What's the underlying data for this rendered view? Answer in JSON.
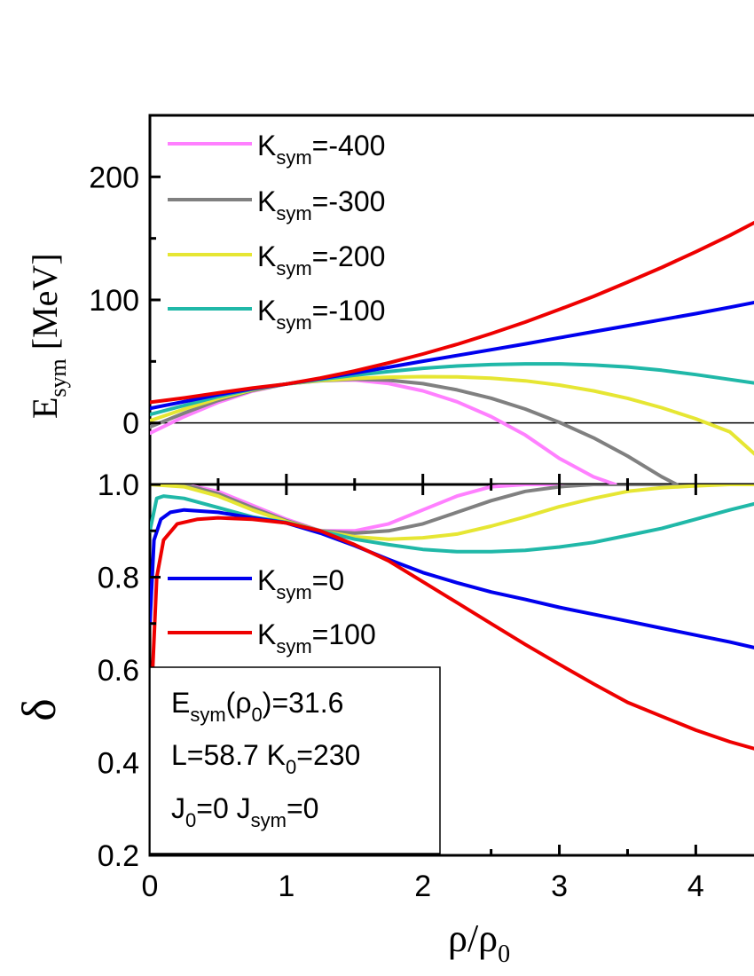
{
  "chart_data": [
    {
      "type": "line",
      "panel": "top",
      "ylabel": {
        "main": "E",
        "sub": "sym",
        "rest": "[MeV]"
      },
      "xlim": [
        0,
        4.55
      ],
      "ylim": [
        -50,
        250
      ],
      "yticks": [
        0,
        100,
        200
      ],
      "ytick_labels": [
        "0",
        "100",
        "200"
      ],
      "hline_y": 0,
      "legend_position": "top-left",
      "series": [
        {
          "name": "Ksym=-400",
          "legend_main": "K",
          "legend_sub": "sym",
          "legend_rest": "=-400",
          "color": "#ff80ff",
          "x": [
            0.0,
            0.25,
            0.5,
            0.75,
            1.0,
            1.25,
            1.5,
            1.75,
            2.0,
            2.25,
            2.5,
            2.75,
            3.0,
            3.25,
            3.41
          ],
          "y": [
            -8.3,
            5.1,
            16.7,
            25.8,
            31.6,
            34.6,
            34.9,
            32.0,
            26.1,
            17.2,
            5.2,
            -9.8,
            -28.8,
            -43.8,
            -50.0
          ]
        },
        {
          "name": "Ksym=-300",
          "legend_main": "K",
          "legend_sub": "sym",
          "legend_rest": "=-300",
          "color": "#808080",
          "x": [
            0.0,
            0.25,
            0.5,
            0.75,
            1.0,
            1.25,
            1.5,
            1.75,
            2.0,
            2.25,
            2.5,
            2.75,
            3.0,
            3.25,
            3.5,
            3.75,
            3.86
          ],
          "y": [
            -3.3,
            8.0,
            18.3,
            26.4,
            31.6,
            34.3,
            35.5,
            34.7,
            31.9,
            26.9,
            20.1,
            11.3,
            0.5,
            -12.1,
            -26.9,
            -43.7,
            -50.0
          ]
        },
        {
          "name": "Ksym=-200",
          "legend_main": "K",
          "legend_sub": "sym",
          "legend_rest": "=-200",
          "color": "#e6e633",
          "x": [
            0.0,
            0.25,
            0.5,
            0.75,
            1.0,
            1.25,
            1.5,
            1.75,
            2.0,
            2.25,
            2.5,
            2.75,
            3.0,
            3.25,
            3.5,
            3.75,
            4.0,
            4.25,
            4.55
          ],
          "y": [
            1.8,
            11.2,
            19.9,
            26.9,
            31.6,
            34.5,
            36.2,
            37.2,
            37.6,
            37.4,
            36.3,
            34.2,
            30.8,
            26.1,
            20.0,
            12.4,
            3.4,
            -7.2,
            -37.0
          ]
        },
        {
          "name": "Ksym=-100",
          "legend_main": "K",
          "legend_sub": "sym",
          "legend_rest": "=-100",
          "color": "#20b8a8",
          "x": [
            0.0,
            0.25,
            0.5,
            0.75,
            1.0,
            1.25,
            1.5,
            1.75,
            2.0,
            2.25,
            2.5,
            2.75,
            3.0,
            3.25,
            3.5,
            3.75,
            4.0,
            4.25,
            4.55
          ],
          "y": [
            6.8,
            14.2,
            21.4,
            27.4,
            31.6,
            35.4,
            38.8,
            41.8,
            44.4,
            46.3,
            47.4,
            48.0,
            48.0,
            47.1,
            45.5,
            42.8,
            39.3,
            35.3,
            30.5
          ]
        },
        {
          "name": "Ksym=0",
          "legend_main": "K",
          "legend_sub": "sym",
          "legend_rest": "=0",
          "color": "#0000ee",
          "x": [
            0.0,
            0.25,
            0.5,
            0.75,
            1.0,
            1.25,
            1.5,
            1.75,
            2.0,
            2.25,
            2.5,
            2.75,
            3.0,
            3.25,
            3.5,
            3.75,
            4.0,
            4.25,
            4.55
          ],
          "y": [
            11.8,
            17.3,
            22.9,
            27.8,
            31.6,
            36.0,
            40.6,
            45.3,
            50.2,
            54.8,
            59.5,
            64.2,
            69.2,
            74.1,
            79.0,
            83.9,
            88.8,
            94.0,
            100.5
          ]
        },
        {
          "name": "Ksym=100",
          "legend_main": "K",
          "legend_sub": "sym",
          "legend_rest": "=100",
          "color": "#ee0000",
          "x": [
            0.0,
            0.25,
            0.5,
            0.75,
            1.0,
            1.25,
            1.5,
            1.75,
            2.0,
            2.25,
            2.5,
            2.75,
            3.0,
            3.25,
            3.5,
            3.75,
            4.0,
            4.25,
            4.55
          ],
          "y": [
            16.8,
            20.3,
            24.4,
            28.3,
            31.6,
            36.5,
            42.2,
            48.8,
            56.0,
            63.9,
            72.6,
            82.0,
            92.2,
            102.8,
            114.4,
            126.3,
            139.1,
            152.4,
            169.8
          ]
        }
      ]
    },
    {
      "type": "line",
      "panel": "bottom",
      "xlabel": {
        "main": "ρ/ρ",
        "sub": "0"
      },
      "ylabel": "δ",
      "xlim": [
        0,
        4.55
      ],
      "ylim": [
        0.2,
        1.0
      ],
      "xticks": [
        0,
        1,
        2,
        3,
        4
      ],
      "xtick_labels": [
        "0",
        "1",
        "2",
        "3",
        "4"
      ],
      "yticks": [
        0.2,
        0.4,
        0.6,
        0.8,
        1.0
      ],
      "ytick_labels": [
        "0.2",
        "0.4",
        "0.6",
        "0.8",
        "1.0"
      ],
      "legend_position": "middle-left",
      "series": [
        {
          "name": "Ksym=-400",
          "color": "#ff80ff",
          "x": [
            0.0,
            0.25,
            0.5,
            0.75,
            1.0,
            1.25,
            1.5,
            1.75,
            2.0,
            2.25,
            2.5,
            2.75,
            3.0,
            3.25,
            3.41,
            3.75,
            4.0,
            4.55
          ],
          "y": [
            1.0,
            1.0,
            0.985,
            0.955,
            0.925,
            0.9,
            0.9,
            0.915,
            0.945,
            0.975,
            0.995,
            1.0,
            1.0,
            1.0,
            1.0,
            1.0,
            1.0,
            1.0
          ]
        },
        {
          "name": "Ksym=-300",
          "color": "#808080",
          "x": [
            0.0,
            0.25,
            0.5,
            0.75,
            1.0,
            1.25,
            1.5,
            1.75,
            2.0,
            2.25,
            2.5,
            2.75,
            3.0,
            3.25,
            3.5,
            3.86,
            4.2,
            4.55
          ],
          "y": [
            1.0,
            1.0,
            0.98,
            0.95,
            0.922,
            0.9,
            0.895,
            0.9,
            0.915,
            0.94,
            0.965,
            0.985,
            0.995,
            1.0,
            1.0,
            1.0,
            1.0,
            1.0
          ]
        },
        {
          "name": "Ksym=-200",
          "color": "#e6e633",
          "x": [
            0.0,
            0.25,
            0.5,
            0.75,
            1.0,
            1.25,
            1.5,
            1.75,
            2.0,
            2.25,
            2.5,
            2.75,
            3.0,
            3.25,
            3.5,
            3.75,
            4.0,
            4.25,
            4.55
          ],
          "y": [
            1.0,
            0.995,
            0.975,
            0.945,
            0.92,
            0.9,
            0.887,
            0.882,
            0.885,
            0.893,
            0.91,
            0.93,
            0.952,
            0.97,
            0.985,
            0.993,
            0.997,
            1.0,
            1.0
          ]
        },
        {
          "name": "Ksym=-100",
          "color": "#20b8a8",
          "x": [
            0.0,
            0.05,
            0.1,
            0.25,
            0.5,
            0.75,
            1.0,
            1.25,
            1.5,
            1.75,
            2.0,
            2.25,
            2.5,
            2.75,
            3.0,
            3.25,
            3.5,
            3.75,
            4.0,
            4.25,
            4.55
          ],
          "y": [
            0.9,
            0.97,
            0.975,
            0.97,
            0.95,
            0.93,
            0.918,
            0.9,
            0.882,
            0.87,
            0.86,
            0.855,
            0.855,
            0.858,
            0.865,
            0.875,
            0.89,
            0.905,
            0.925,
            0.945,
            0.967
          ]
        },
        {
          "name": "Ksym=0",
          "color": "#0000ee",
          "x": [
            0.0,
            0.03,
            0.08,
            0.15,
            0.25,
            0.5,
            0.75,
            1.0,
            1.25,
            1.5,
            1.75,
            2.0,
            2.25,
            2.5,
            2.75,
            3.0,
            3.25,
            3.5,
            3.75,
            4.0,
            4.25,
            4.55
          ],
          "y": [
            0.7,
            0.88,
            0.925,
            0.94,
            0.945,
            0.94,
            0.928,
            0.917,
            0.895,
            0.868,
            0.838,
            0.81,
            0.788,
            0.768,
            0.752,
            0.735,
            0.72,
            0.705,
            0.69,
            0.675,
            0.66,
            0.64
          ]
        },
        {
          "name": "Ksym=100",
          "color": "#ee0000",
          "x": [
            0.0,
            0.02,
            0.05,
            0.1,
            0.2,
            0.35,
            0.5,
            0.75,
            1.0,
            1.25,
            1.5,
            1.75,
            2.0,
            2.25,
            2.5,
            2.75,
            3.0,
            3.25,
            3.5,
            3.75,
            4.0,
            4.25,
            4.55
          ],
          "y": [
            0.2,
            0.6,
            0.8,
            0.88,
            0.915,
            0.925,
            0.928,
            0.925,
            0.917,
            0.9,
            0.87,
            0.835,
            0.79,
            0.745,
            0.7,
            0.655,
            0.612,
            0.57,
            0.53,
            0.5,
            0.47,
            0.445,
            0.42
          ]
        }
      ],
      "legend_entries": [
        {
          "main": "K",
          "sub": "sym",
          "rest": "=0",
          "color": "#0000ee"
        },
        {
          "main": "K",
          "sub": "sym",
          "rest": "=100",
          "color": "#ee0000"
        }
      ]
    }
  ],
  "info_box": {
    "line1_main": "E",
    "line1_sub": "sym",
    "line1_mid": "(ρ",
    "line1_sub2": "0",
    "line1_rest": ")=31.6",
    "line2_main": "L=58.7 K",
    "line2_sub": "0",
    "line2_rest": "=230",
    "line3_main": "J",
    "line3_sub": "0",
    "line3_mid": "=0 J",
    "line3_sub2": "sym",
    "line3_rest": "=0"
  }
}
